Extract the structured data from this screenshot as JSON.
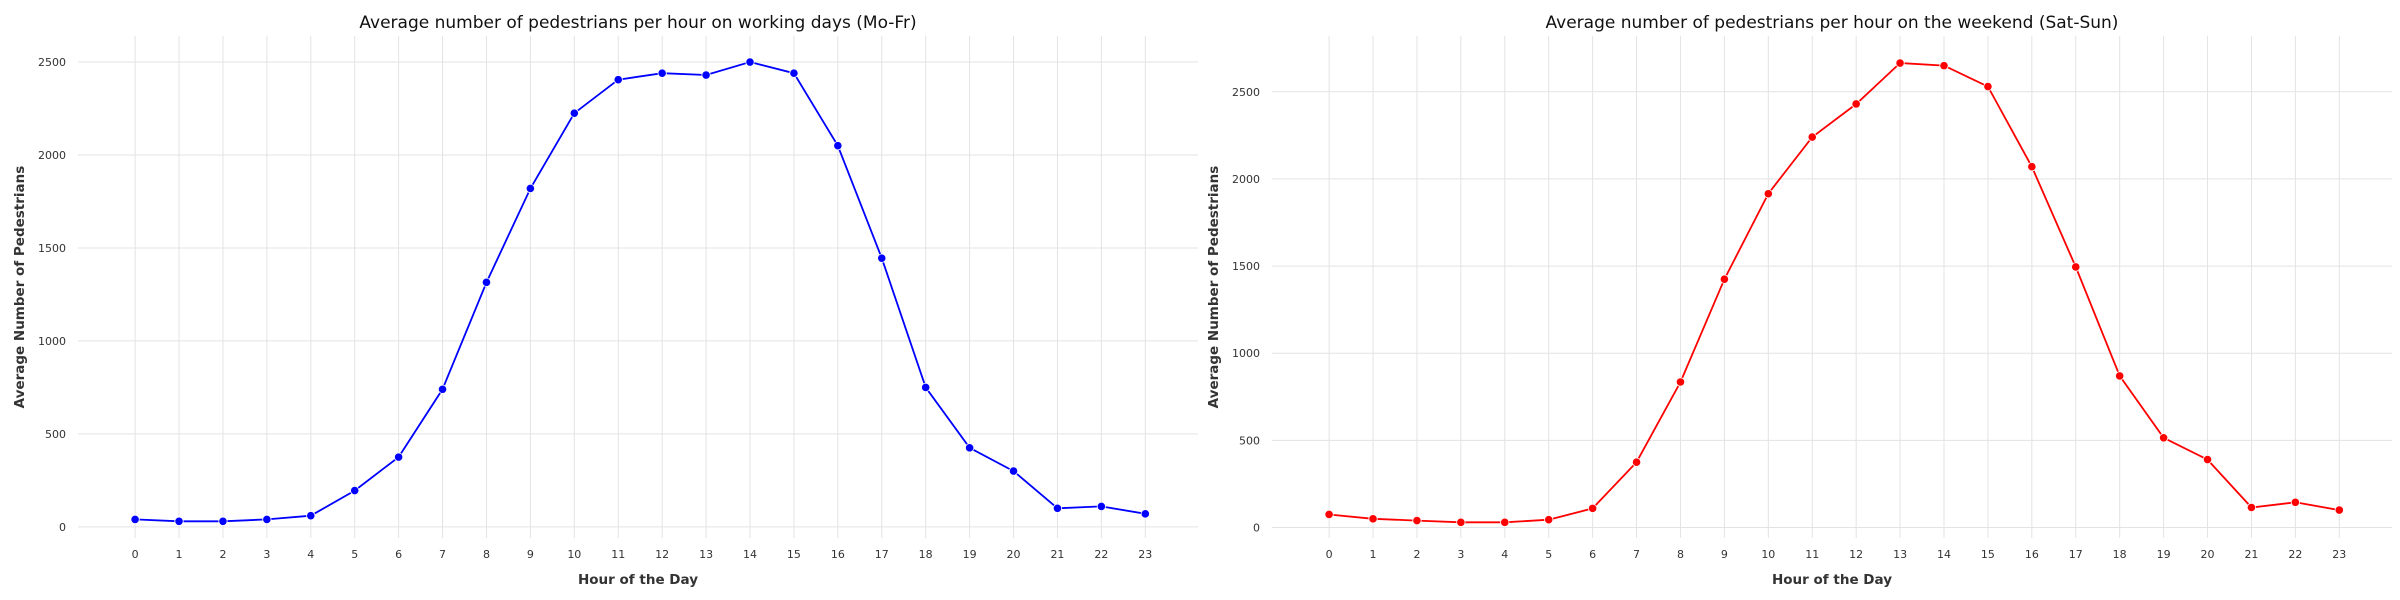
{
  "chart_data": [
    {
      "type": "line",
      "title": "Average number of pedestrians per hour on working days (Mo-Fr)",
      "xlabel": "Hour of the Day",
      "ylabel": "Average Number of Pedestrians",
      "x": [
        0,
        1,
        2,
        3,
        4,
        5,
        6,
        7,
        8,
        9,
        10,
        11,
        12,
        13,
        14,
        15,
        16,
        17,
        18,
        19,
        20,
        21,
        22,
        23
      ],
      "xticks": [
        "0",
        "1",
        "2",
        "3",
        "4",
        "5",
        "6",
        "7",
        "8",
        "9",
        "10",
        "11",
        "12",
        "13",
        "14",
        "15",
        "16",
        "17",
        "18",
        "19",
        "20",
        "21",
        "22",
        "23"
      ],
      "yticks": [
        0,
        500,
        1000,
        1500,
        2000,
        2500
      ],
      "ytick_labels": [
        "0",
        "500",
        "1000",
        "1500",
        "2000",
        "2500"
      ],
      "xlim": [
        -1.3,
        24.2
      ],
      "ylim": [
        -60,
        2640
      ],
      "grid": true,
      "color": "#0000ff",
      "series": [
        {
          "values": [
            40,
            30,
            30,
            40,
            60,
            195,
            375,
            740,
            1315,
            1820,
            2225,
            2405,
            2440,
            2430,
            2500,
            2440,
            2050,
            1445,
            750,
            425,
            300,
            100,
            110,
            70
          ]
        }
      ]
    },
    {
      "type": "line",
      "title": "Average number of pedestrians per hour on the weekend (Sat-Sun)",
      "xlabel": "Hour of the Day",
      "ylabel": "Average Number of Pedestrians",
      "x": [
        0,
        1,
        2,
        3,
        4,
        5,
        6,
        7,
        8,
        9,
        10,
        11,
        12,
        13,
        14,
        15,
        16,
        17,
        18,
        19,
        20,
        21,
        22,
        23
      ],
      "xticks": [
        "0",
        "1",
        "2",
        "3",
        "4",
        "5",
        "6",
        "7",
        "8",
        "9",
        "10",
        "11",
        "12",
        "13",
        "14",
        "15",
        "16",
        "17",
        "18",
        "19",
        "20",
        "21",
        "22",
        "23"
      ],
      "yticks": [
        0,
        500,
        1000,
        1500,
        2000,
        2500
      ],
      "ytick_labels": [
        "0",
        "500",
        "1000",
        "1500",
        "2000",
        "2500"
      ],
      "xlim": [
        -1.3,
        24.2
      ],
      "ylim": [
        -60,
        2820
      ],
      "grid": true,
      "color": "#ff0000",
      "series": [
        {
          "values": [
            75,
            50,
            40,
            30,
            30,
            45,
            110,
            375,
            835,
            1425,
            1915,
            2240,
            2430,
            2665,
            2650,
            2530,
            2070,
            1495,
            870,
            515,
            390,
            115,
            145,
            100
          ]
        }
      ]
    }
  ]
}
